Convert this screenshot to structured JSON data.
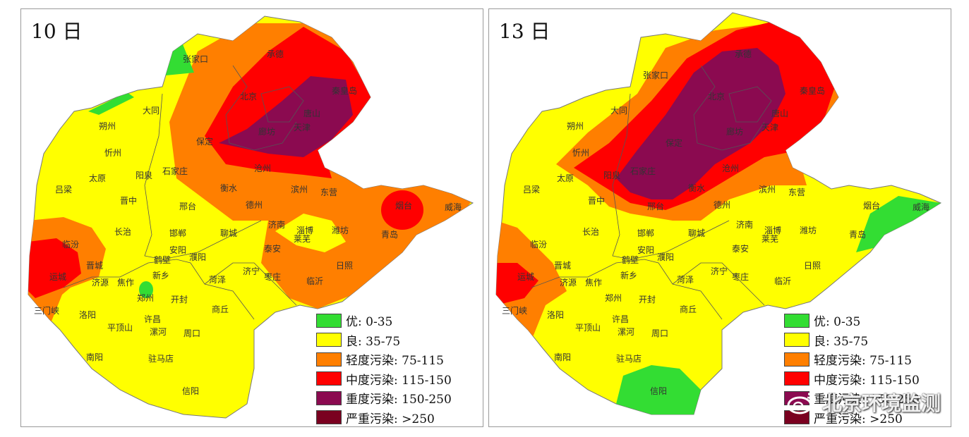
{
  "panels": [
    {
      "day_label": "10 日",
      "legend": [
        {
          "label": "优: 0-35",
          "color": "#33dd33"
        },
        {
          "label": "良: 35-75",
          "color": "#ffff00"
        },
        {
          "label": "轻度污染: 75-115",
          "color": "#ff7f00"
        },
        {
          "label": "中度污染: 115-150",
          "color": "#ff0000"
        },
        {
          "label": "重度污染: 150-250",
          "color": "#8b0a50"
        },
        {
          "label": "严重污染: >250",
          "color": "#7a0020"
        }
      ],
      "cities": [
        "承德",
        "张家口",
        "北京",
        "秦皇岛",
        "唐山",
        "天津",
        "廊坊",
        "保定",
        "大同",
        "朔州",
        "忻州",
        "石家庄",
        "沧州",
        "衡水",
        "太原",
        "阳泉",
        "吕梁",
        "晋中",
        "邢台",
        "滨州",
        "东营",
        "德州",
        "烟台",
        "威海",
        "长治",
        "邯郸",
        "聊城",
        "济南",
        "淄博",
        "潍坊",
        "青岛",
        "临汾",
        "泰安",
        "莱芜",
        "安阳",
        "鹤壁",
        "濮阳",
        "晋城",
        "新乡",
        "运城",
        "济源",
        "焦作",
        "菏泽",
        "济宁",
        "枣庄",
        "临沂",
        "日照",
        "三门峡",
        "郑州",
        "开封",
        "商丘",
        "洛阳",
        "平顶山",
        "许昌",
        "漯河",
        "周口",
        "南阳",
        "驻马店",
        "信阳"
      ]
    },
    {
      "day_label": "13 日",
      "legend": [
        {
          "label": "优: 0-35",
          "color": "#33dd33"
        },
        {
          "label": "良: 35-75",
          "color": "#ffff00"
        },
        {
          "label": "轻度污染: 75-115",
          "color": "#ff7f00"
        },
        {
          "label": "中度污染: 115-150",
          "color": "#ff0000"
        },
        {
          "label": "重度污染: 150-250",
          "color": "#8b0a50"
        },
        {
          "label": "严重污染: >250",
          "color": "#7a0020"
        }
      ],
      "cities": [
        "承德",
        "张家口",
        "北京",
        "秦皇岛",
        "唐山",
        "天津",
        "廊坊",
        "保定",
        "大同",
        "朔州",
        "忻州",
        "石家庄",
        "沧州",
        "衡水",
        "太原",
        "阳泉",
        "吕梁",
        "晋中",
        "邢台",
        "滨州",
        "东营",
        "德州",
        "烟台",
        "威海",
        "长治",
        "邯郸",
        "聊城",
        "济南",
        "淄博",
        "潍坊",
        "青岛",
        "临汾",
        "泰安",
        "莱芜",
        "安阳",
        "鹤壁",
        "濮阳",
        "晋城",
        "新乡",
        "运城",
        "济源",
        "焦作",
        "菏泽",
        "济宁",
        "枣庄",
        "临沂",
        "日照",
        "三门峡",
        "郑州",
        "开封",
        "商丘",
        "洛阳",
        "平顶山",
        "许昌",
        "漯河",
        "周口",
        "南阳",
        "驻马店",
        "信阳"
      ]
    }
  ],
  "watermark": "北京环境监测",
  "watermark_icon": "weibo-icon"
}
